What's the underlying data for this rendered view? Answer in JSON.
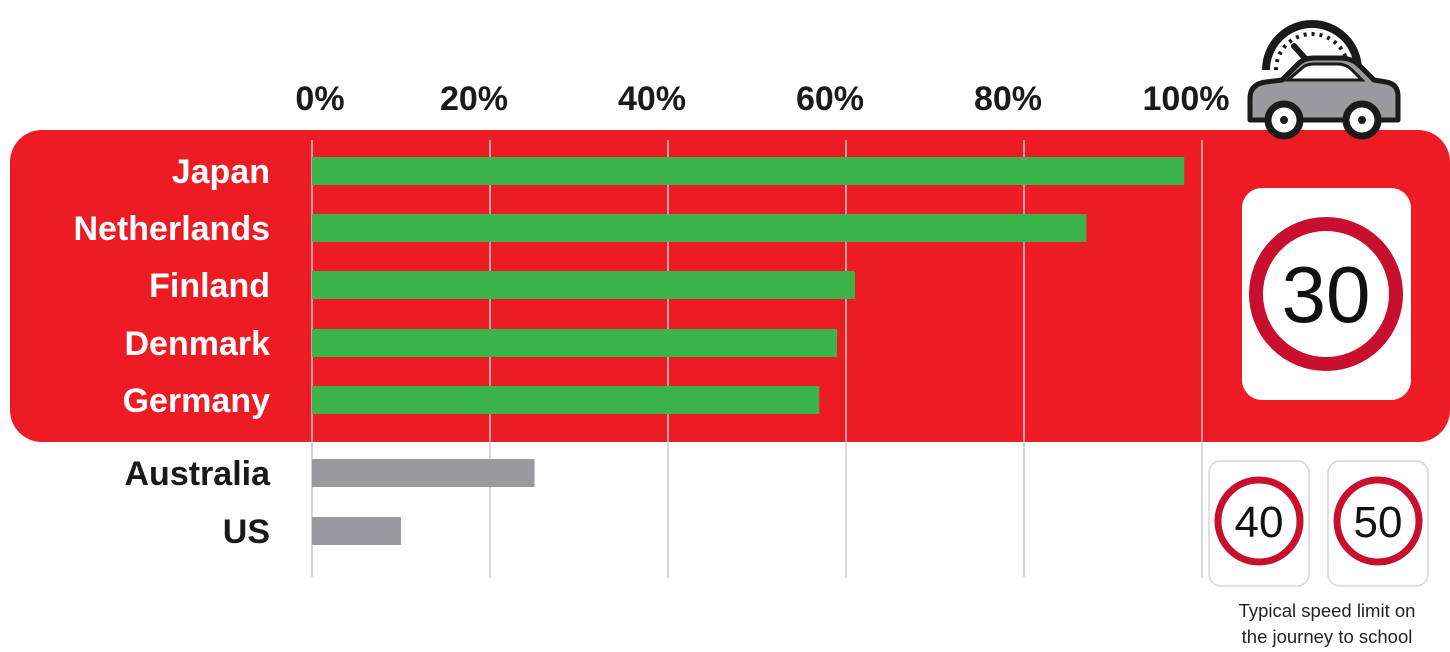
{
  "chart_data": {
    "type": "bar",
    "orientation": "horizontal",
    "categories": [
      "Japan",
      "Netherlands",
      "Finland",
      "Denmark",
      "Germany",
      "Australia",
      "US"
    ],
    "values": [
      98,
      87,
      61,
      59,
      57,
      25,
      10
    ],
    "groups": [
      {
        "categories": [
          "Japan",
          "Netherlands",
          "Finland",
          "Denmark",
          "Germany"
        ],
        "speed_limit": "30",
        "bar_color": "#3bb54a",
        "label_color": "#ffffff"
      },
      {
        "categories": [
          "Australia",
          "US"
        ],
        "speed_limit": [
          "40",
          "50"
        ],
        "bar_color": "#9a9a9e",
        "label_color": "#1a1a1a"
      }
    ],
    "xlim": [
      0,
      100
    ],
    "xticks": [
      0,
      20,
      40,
      60,
      80,
      100
    ],
    "xtick_labels": [
      "0%",
      "20%",
      "40%",
      "60%",
      "80%",
      "100%"
    ],
    "title": "",
    "xlabel": "",
    "ylabel": "",
    "grid": true,
    "colors": {
      "panel": "#ed1c24",
      "green_bar": "#3bb54a",
      "grey_bar": "#9a9a9e",
      "sign_ring": "#c8102e",
      "grid": "#cccccc"
    }
  },
  "speed_signs": {
    "main": "30",
    "others": [
      "40",
      "50"
    ],
    "caption_line1": "Typical speed limit on",
    "caption_line2": "the journey to school"
  },
  "icons": {
    "car": "car-icon",
    "speedometer": "speedometer-icon"
  }
}
